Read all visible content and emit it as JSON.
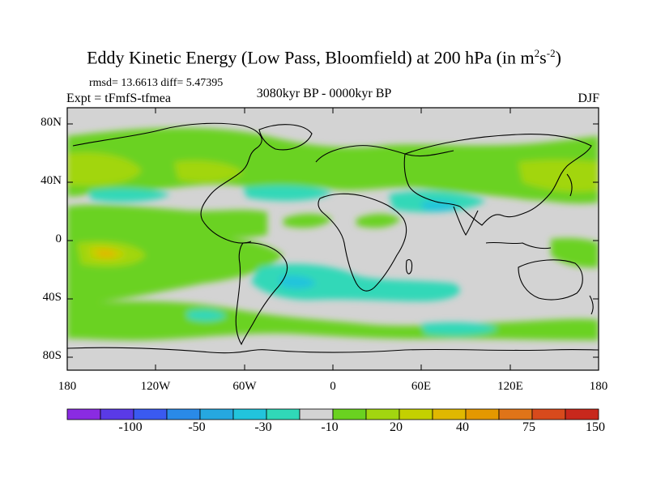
{
  "title": {
    "main": "Eddy Kinetic Energy (Low Pass, Bloomfield) at 200 hPa (in m",
    "sup1": "2",
    "mid": "s",
    "sup2": "-2",
    "end": ")"
  },
  "stats": "rmsd= 13.6613  diff= 5.47395",
  "experiment": "Expt = tFmfS-tfmea",
  "period": "3080kyr BP - 0000kyr BP",
  "season": "DJF",
  "axes": {
    "y_ticks": [
      "80N",
      "40N",
      "0",
      "40S",
      "80S"
    ],
    "x_ticks": [
      "180",
      "120W",
      "60W",
      "0",
      "60E",
      "120E",
      "180"
    ]
  },
  "colorbar": {
    "labels": [
      "-100",
      "-50",
      "-30",
      "-10",
      "20",
      "40",
      "75",
      "150"
    ],
    "colors": [
      "#8a2be2",
      "#5a3ae6",
      "#3a5af0",
      "#2a8ae8",
      "#26a8e0",
      "#22c4dc",
      "#30d8b8",
      "#d3d3d3",
      "#6ad220",
      "#a2d610",
      "#c4d000",
      "#e0b800",
      "#e49800",
      "#e07418",
      "#d84a1c",
      "#c8281c"
    ]
  },
  "map": {
    "background_color": "#d3d3d3",
    "lat_range": [
      -90,
      90
    ],
    "lon_range": [
      -180,
      180
    ]
  }
}
